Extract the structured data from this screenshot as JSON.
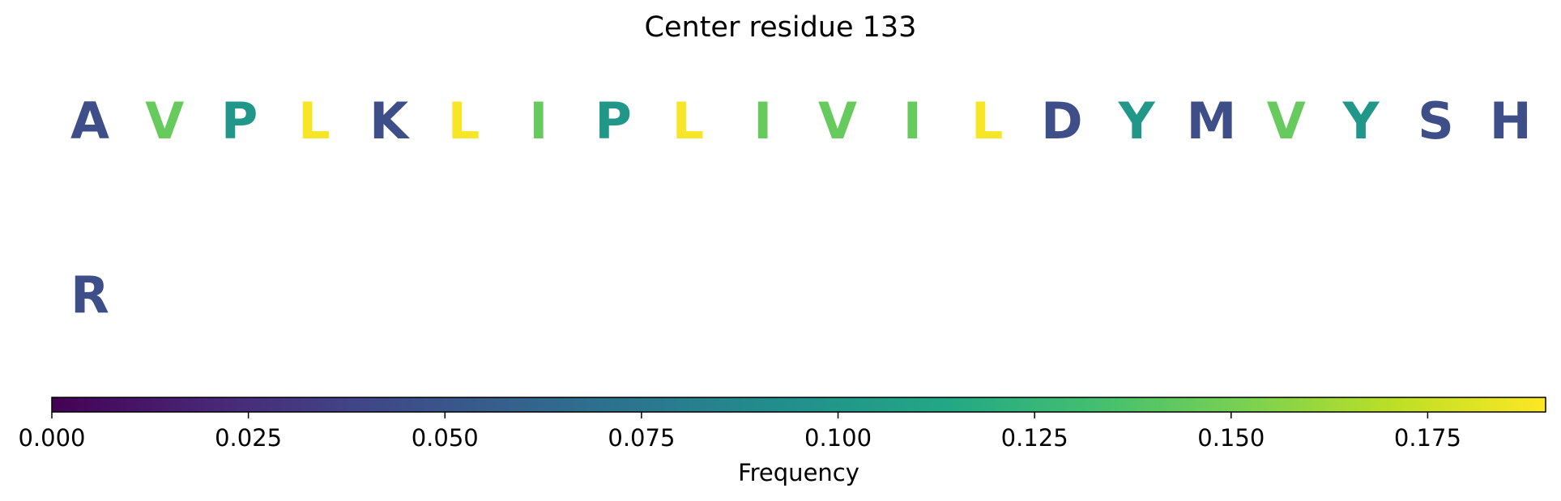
{
  "chart_data": {
    "type": "heatmap",
    "title": "Center residue 133",
    "rows": [
      {
        "residues": [
          {
            "letter": "A",
            "frequency": 0.045
          },
          {
            "letter": "V",
            "frequency": 0.145
          },
          {
            "letter": "P",
            "frequency": 0.1
          },
          {
            "letter": "L",
            "frequency": 0.188
          },
          {
            "letter": "K",
            "frequency": 0.045
          },
          {
            "letter": "L",
            "frequency": 0.188
          },
          {
            "letter": "I",
            "frequency": 0.145
          },
          {
            "letter": "P",
            "frequency": 0.1
          },
          {
            "letter": "L",
            "frequency": 0.188
          },
          {
            "letter": "I",
            "frequency": 0.145
          },
          {
            "letter": "V",
            "frequency": 0.145
          },
          {
            "letter": "I",
            "frequency": 0.145
          },
          {
            "letter": "L",
            "frequency": 0.188
          },
          {
            "letter": "D",
            "frequency": 0.045
          },
          {
            "letter": "Y",
            "frequency": 0.1
          },
          {
            "letter": "M",
            "frequency": 0.045
          },
          {
            "letter": "V",
            "frequency": 0.145
          },
          {
            "letter": "Y",
            "frequency": 0.1
          },
          {
            "letter": "S",
            "frequency": 0.045
          },
          {
            "letter": "H",
            "frequency": 0.045
          }
        ]
      },
      {
        "residues": [
          {
            "letter": "R",
            "frequency": 0.045
          }
        ]
      }
    ],
    "colorbar": {
      "label": "Frequency",
      "range": [
        0,
        0.19
      ],
      "ticks": [
        "0.000",
        "0.025",
        "0.050",
        "0.075",
        "0.100",
        "0.125",
        "0.150",
        "0.175"
      ],
      "tick_values": [
        0,
        0.025,
        0.05,
        0.075,
        0.1,
        0.125,
        0.15,
        0.175
      ],
      "colormap": "viridis"
    }
  }
}
